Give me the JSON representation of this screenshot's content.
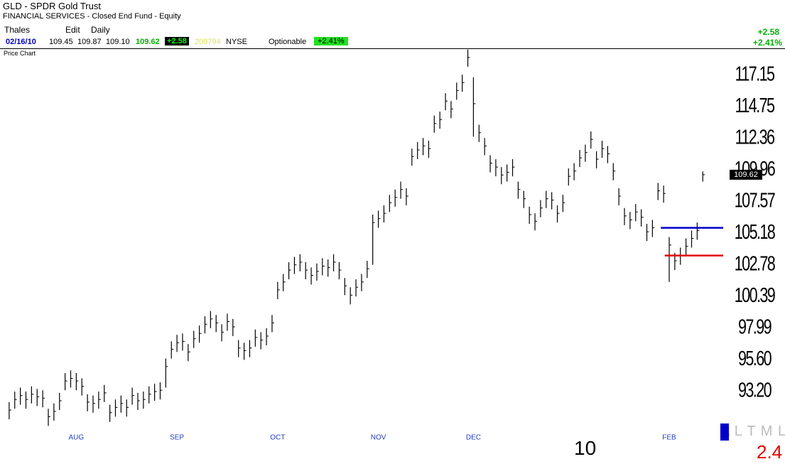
{
  "header": {
    "symbol": "GLD - SPDR Gold Trust",
    "industry": "FINANCIAL SERVICES - Closed End Fund - Equity",
    "user": "Thales",
    "edit": "Edit",
    "period": "Daily",
    "quote": {
      "date": "02/16/10",
      "open": "109.45",
      "high": "109.87",
      "low": "109.10",
      "last": "109.62",
      "change": "+2.58",
      "volume": "208794",
      "exchange": "NYSE",
      "optionable": "Optionable",
      "pct": "+2.41%"
    },
    "right_change": "+2.58",
    "right_pct": "+2.41%"
  },
  "panel_title": "Price Chart",
  "chart_data": {
    "type": "ohlc",
    "color": "#000000",
    "xlim": [
      -1,
      126
    ],
    "xticks": [
      {
        "value": 12,
        "label": "AUG"
      },
      {
        "value": 30,
        "label": "SEP"
      },
      {
        "value": 48,
        "label": "OCT"
      },
      {
        "value": 66,
        "label": "NOV"
      },
      {
        "value": 83,
        "label": "DEC"
      },
      {
        "value": 118,
        "label": "FEB"
      }
    ],
    "ylim": [
      90.78,
      119.14
    ],
    "yticks": [
      117.15,
      114.75,
      112.36,
      109.96,
      107.57,
      105.18,
      102.78,
      100.39,
      97.99,
      {
        "value": 95.6,
        "label": "95.60"
      },
      {
        "value": 93.2,
        "label": "93.20"
      }
    ],
    "high": [
      92.4,
      93.2,
      93.5,
      93.2,
      93.6,
      93.4,
      93.3,
      91.9,
      92.3,
      93.1,
      94.6,
      94.8,
      94.6,
      94.2,
      93.0,
      92.9,
      93.2,
      93.7,
      92.2,
      92.6,
      92.9,
      92.6,
      93.5,
      93.1,
      93.2,
      93.6,
      93.8,
      93.9,
      95.7,
      97.0,
      97.5,
      97.6,
      96.8,
      97.8,
      98.2,
      98.9,
      99.3,
      99.0,
      98.3,
      99.1,
      98.7,
      97.1,
      96.9,
      97.1,
      97.9,
      97.7,
      98.0,
      99.0,
      101.5,
      102.1,
      103.0,
      103.4,
      103.6,
      103.0,
      102.6,
      102.9,
      103.3,
      103.2,
      103.6,
      103.0,
      101.8,
      101.1,
      101.7,
      102.1,
      103.1,
      106.6,
      106.9,
      107.3,
      108.1,
      108.5,
      109.1,
      108.6,
      111.6,
      112.1,
      112.4,
      112.2,
      114.1,
      114.4,
      115.8,
      115.2,
      116.6,
      117.2,
      119.1,
      117.0,
      113.4,
      112.4,
      111.1,
      110.8,
      110.2,
      110.4,
      110.8,
      109.1,
      108.4,
      107.2,
      106.7,
      107.7,
      108.4,
      108.3,
      107.3,
      108.1,
      110.1,
      110.5,
      111.5,
      111.9,
      112.9,
      111.4,
      112.2,
      111.8,
      110.5,
      108.6,
      107.1,
      106.8,
      107.4,
      107.0,
      105.9,
      106.2,
      109.0,
      108.8,
      104.9,
      103.7,
      104.1,
      104.8,
      105.4,
      106.0,
      109.87
    ],
    "low": [
      91.1,
      91.9,
      92.2,
      91.9,
      92.3,
      92.1,
      92.0,
      90.6,
      91.0,
      91.8,
      93.3,
      93.5,
      93.3,
      92.9,
      91.7,
      91.6,
      91.9,
      92.4,
      90.9,
      91.3,
      91.6,
      91.3,
      92.2,
      91.8,
      91.9,
      92.3,
      92.5,
      92.6,
      93.5,
      95.7,
      96.2,
      96.3,
      95.5,
      96.5,
      96.9,
      97.6,
      98.0,
      97.7,
      97.0,
      97.8,
      97.4,
      95.8,
      95.6,
      95.8,
      96.6,
      96.4,
      96.7,
      97.7,
      100.2,
      100.8,
      101.7,
      102.1,
      102.3,
      101.7,
      101.3,
      101.6,
      102.0,
      101.9,
      102.3,
      101.7,
      100.5,
      99.8,
      100.4,
      100.8,
      101.8,
      102.8,
      105.6,
      106.0,
      106.8,
      107.2,
      107.8,
      107.3,
      110.3,
      110.8,
      111.1,
      110.9,
      112.8,
      113.1,
      114.5,
      113.9,
      115.3,
      115.9,
      117.8,
      112.5,
      112.1,
      111.1,
      109.8,
      109.5,
      108.9,
      109.1,
      109.5,
      107.8,
      107.1,
      105.9,
      105.4,
      106.4,
      107.1,
      107.0,
      106.0,
      106.8,
      108.8,
      109.2,
      110.2,
      110.6,
      111.6,
      110.1,
      110.9,
      110.5,
      109.2,
      107.3,
      105.8,
      105.5,
      106.1,
      105.7,
      104.6,
      104.9,
      107.7,
      107.5,
      101.5,
      102.4,
      102.8,
      103.5,
      104.1,
      104.7,
      109.1
    ],
    "close": [
      91.8,
      92.6,
      92.9,
      92.6,
      93.0,
      92.8,
      92.7,
      91.3,
      91.7,
      92.5,
      94.0,
      94.2,
      94.0,
      93.6,
      92.4,
      92.3,
      92.6,
      93.1,
      91.6,
      92.0,
      92.3,
      92.0,
      92.9,
      92.5,
      92.6,
      93.0,
      93.2,
      93.3,
      95.1,
      96.4,
      96.9,
      97.0,
      96.2,
      97.2,
      97.6,
      98.3,
      98.7,
      98.4,
      97.7,
      98.5,
      98.1,
      96.5,
      96.3,
      96.5,
      97.3,
      97.1,
      97.4,
      98.4,
      100.9,
      101.5,
      102.4,
      102.8,
      103.0,
      102.4,
      102.0,
      102.3,
      102.7,
      102.6,
      103.0,
      102.4,
      101.2,
      100.5,
      101.1,
      101.5,
      102.5,
      106.0,
      106.3,
      106.7,
      107.5,
      107.9,
      108.5,
      108.0,
      111.0,
      111.5,
      111.8,
      111.6,
      113.5,
      113.8,
      115.2,
      114.6,
      116.0,
      116.6,
      118.5,
      115.0,
      112.8,
      111.8,
      110.5,
      110.2,
      109.6,
      109.8,
      110.2,
      108.5,
      107.8,
      106.6,
      106.1,
      107.1,
      107.8,
      107.7,
      106.7,
      107.5,
      109.5,
      109.9,
      110.9,
      111.3,
      112.3,
      110.8,
      111.6,
      111.2,
      109.9,
      108.0,
      106.5,
      106.2,
      106.8,
      106.4,
      105.3,
      105.6,
      108.4,
      108.2,
      104.3,
      103.1,
      103.5,
      104.2,
      104.8,
      105.4,
      109.62
    ],
    "levels": [
      {
        "value": 105.6,
        "color": "#0000cc"
      },
      {
        "value": 103.5,
        "color": "#e00000"
      }
    ]
  },
  "footer": {
    "year": "10",
    "indicator": "A L T M L",
    "indicator_value": "2.4"
  }
}
